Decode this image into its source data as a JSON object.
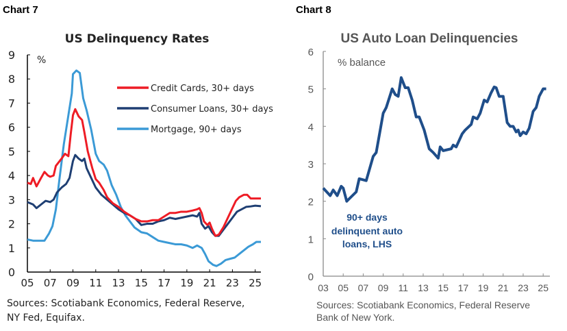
{
  "chart_data": [
    {
      "chart_label": "Chart 7",
      "type": "line",
      "title": "US Delinquency Rates",
      "ylabel": "%",
      "ylim": [
        0,
        9
      ],
      "xlim": [
        2005,
        2025.5
      ],
      "yticks": [
        "0",
        "1",
        "2",
        "3",
        "4",
        "5",
        "6",
        "7",
        "8",
        "9"
      ],
      "xticks": [
        "05",
        "07",
        "09",
        "11",
        "13",
        "15",
        "17",
        "19",
        "21",
        "23",
        "25"
      ],
      "legend": "top-right",
      "source": "Sources: Scotiabank Economics, Federal Reserve, NY Fed, Equifax.",
      "series": [
        {
          "name": "Credit Cards, 30+ days",
          "color": "#ee1c25",
          "x": [
            2005,
            2005.3,
            2005.5,
            2005.8,
            2006.2,
            2006.5,
            2006.8,
            2007,
            2007.3,
            2007.5,
            2008,
            2008.3,
            2008.6,
            2008.8,
            2009,
            2009.2,
            2009.5,
            2009.8,
            2010,
            2010.3,
            2010.7,
            2011,
            2011.3,
            2011.7,
            2012,
            2012.5,
            2013,
            2013.5,
            2014,
            2014.5,
            2015,
            2015.5,
            2016,
            2016.5,
            2017,
            2017.5,
            2018,
            2018.5,
            2019,
            2019.5,
            2019.9,
            2020.1,
            2020.3,
            2020.5,
            2020.8,
            2021,
            2021.2,
            2021.5,
            2021.8,
            2022.2,
            2022.6,
            2023,
            2023.3,
            2023.6,
            2024,
            2024.3,
            2024.6,
            2025,
            2025.5
          ],
          "y": [
            3.7,
            3.65,
            3.9,
            3.55,
            3.9,
            4.15,
            4.0,
            3.95,
            4.0,
            4.4,
            4.7,
            4.9,
            4.8,
            5.7,
            6.5,
            6.75,
            6.45,
            6.3,
            5.8,
            5.0,
            4.3,
            3.85,
            3.7,
            3.4,
            3.1,
            2.85,
            2.7,
            2.5,
            2.35,
            2.2,
            2.1,
            2.1,
            2.15,
            2.15,
            2.3,
            2.45,
            2.45,
            2.5,
            2.5,
            2.55,
            2.6,
            2.65,
            2.45,
            2.1,
            1.95,
            2.05,
            1.8,
            1.5,
            1.55,
            1.85,
            2.25,
            2.65,
            2.95,
            3.1,
            3.2,
            3.2,
            3.05,
            3.05,
            3.05
          ]
        },
        {
          "name": "Consumer Loans, 30+ days",
          "color": "#1f3f73",
          "x": [
            2005,
            2005.5,
            2005.8,
            2006.2,
            2006.6,
            2007,
            2007.3,
            2007.6,
            2008,
            2008.4,
            2008.7,
            2009,
            2009.2,
            2009.5,
            2009.8,
            2010,
            2010.2,
            2010.6,
            2011,
            2011.5,
            2012,
            2012.5,
            2013,
            2013.5,
            2014,
            2014.5,
            2015,
            2015.5,
            2016,
            2016.5,
            2017,
            2017.5,
            2018,
            2018.5,
            2019,
            2019.5,
            2019.9,
            2020.1,
            2020.3,
            2020.6,
            2020.9,
            2021.2,
            2021.5,
            2021.8,
            2022.2,
            2022.6,
            2023,
            2023.4,
            2023.8,
            2024.2,
            2024.6,
            2025,
            2025.5
          ],
          "y": [
            2.9,
            2.8,
            2.65,
            2.8,
            2.95,
            2.9,
            3.0,
            3.3,
            3.5,
            3.65,
            3.9,
            4.6,
            4.85,
            4.7,
            4.6,
            4.7,
            4.3,
            3.9,
            3.5,
            3.2,
            3.0,
            2.8,
            2.6,
            2.45,
            2.35,
            2.2,
            1.95,
            2.0,
            2.0,
            2.1,
            2.15,
            2.25,
            2.2,
            2.25,
            2.3,
            2.35,
            2.3,
            2.45,
            2.0,
            1.8,
            1.9,
            1.65,
            1.5,
            1.5,
            1.75,
            2.0,
            2.25,
            2.5,
            2.6,
            2.7,
            2.72,
            2.75,
            2.73
          ]
        },
        {
          "name": "Mortgage, 90+ days",
          "color": "#3b9ad6",
          "x": [
            2005,
            2005.5,
            2006,
            2006.5,
            2006.9,
            2007.2,
            2007.5,
            2007.8,
            2008.2,
            2008.6,
            2008.9,
            2009,
            2009.3,
            2009.6,
            2009.9,
            2010.2,
            2010.6,
            2011,
            2011.3,
            2011.7,
            2012,
            2012.4,
            2012.8,
            2013.2,
            2013.6,
            2014,
            2014.4,
            2015,
            2015.5,
            2016,
            2016.5,
            2017,
            2017.5,
            2018,
            2018.5,
            2019,
            2019.5,
            2019.9,
            2020.3,
            2020.6,
            2020.9,
            2021.3,
            2021.6,
            2022,
            2022.4,
            2022.8,
            2023.2,
            2023.6,
            2024,
            2024.4,
            2024.8,
            2025.1,
            2025.5
          ],
          "y": [
            1.35,
            1.3,
            1.3,
            1.3,
            1.6,
            1.9,
            2.6,
            3.8,
            5.3,
            6.5,
            7.4,
            8.2,
            8.35,
            8.25,
            7.2,
            6.7,
            5.9,
            4.9,
            4.6,
            4.45,
            4.2,
            3.6,
            3.2,
            2.7,
            2.35,
            2.1,
            1.85,
            1.65,
            1.6,
            1.45,
            1.3,
            1.25,
            1.2,
            1.15,
            1.15,
            1.1,
            1.0,
            1.1,
            1.0,
            0.75,
            0.45,
            0.3,
            0.25,
            0.35,
            0.5,
            0.55,
            0.6,
            0.75,
            0.9,
            1.05,
            1.15,
            1.25,
            1.25
          ]
        }
      ]
    },
    {
      "chart_label": "Chart 8",
      "type": "line",
      "title": "US Auto Loan Delinquencies",
      "ylabel": "% balance",
      "ylim": [
        0,
        6
      ],
      "xlim": [
        2003,
        2025.3
      ],
      "yticks": [
        "0",
        "1",
        "2",
        "3",
        "4",
        "5",
        "6"
      ],
      "xticks": [
        "03",
        "05",
        "07",
        "09",
        "11",
        "13",
        "15",
        "17",
        "19",
        "21",
        "23",
        "25"
      ],
      "annotation": [
        "90+ days",
        "delinquent auto",
        "loans, LHS"
      ],
      "source": "Sources: Scotiabank Economics, Federal Reserve Bank of New York.",
      "series": [
        {
          "color": "#1f4e8a",
          "x": [
            2003,
            2003.7,
            2004,
            2004.4,
            2004.8,
            2005,
            2005.35,
            2006.3,
            2006.6,
            2007.3,
            2008,
            2008.3,
            2009,
            2009.3,
            2009.9,
            2010.2,
            2010.5,
            2010.8,
            2011.2,
            2011.5,
            2011.9,
            2012.3,
            2012.6,
            2013.1,
            2013.6,
            2014,
            2014.5,
            2014.7,
            2015,
            2015.8,
            2016,
            2016.3,
            2016.9,
            2017.2,
            2017.8,
            2018,
            2018.4,
            2018.7,
            2019.1,
            2019.4,
            2019.8,
            2020.1,
            2020.3,
            2020.6,
            2021,
            2021.4,
            2021.7,
            2022,
            2022.3,
            2022.5,
            2022.7,
            2023,
            2023.3,
            2023.6,
            2024,
            2024.3,
            2024.6,
            2025,
            2025.3
          ],
          "y": [
            2.35,
            2.15,
            2.3,
            2.15,
            2.4,
            2.35,
            2.0,
            2.25,
            2.6,
            2.55,
            3.2,
            3.3,
            4.35,
            4.5,
            5.0,
            4.85,
            4.8,
            5.3,
            5.03,
            5.03,
            4.7,
            4.25,
            4.25,
            3.9,
            3.4,
            3.3,
            3.15,
            3.45,
            3.35,
            3.4,
            3.5,
            3.45,
            3.8,
            3.9,
            4.05,
            4.25,
            4.2,
            4.35,
            4.7,
            4.65,
            4.9,
            5.05,
            5.03,
            4.8,
            4.8,
            4.1,
            4.0,
            4.0,
            3.85,
            3.9,
            3.75,
            3.85,
            3.8,
            3.95,
            4.4,
            4.5,
            4.8,
            5.0,
            5.0
          ]
        }
      ]
    }
  ]
}
